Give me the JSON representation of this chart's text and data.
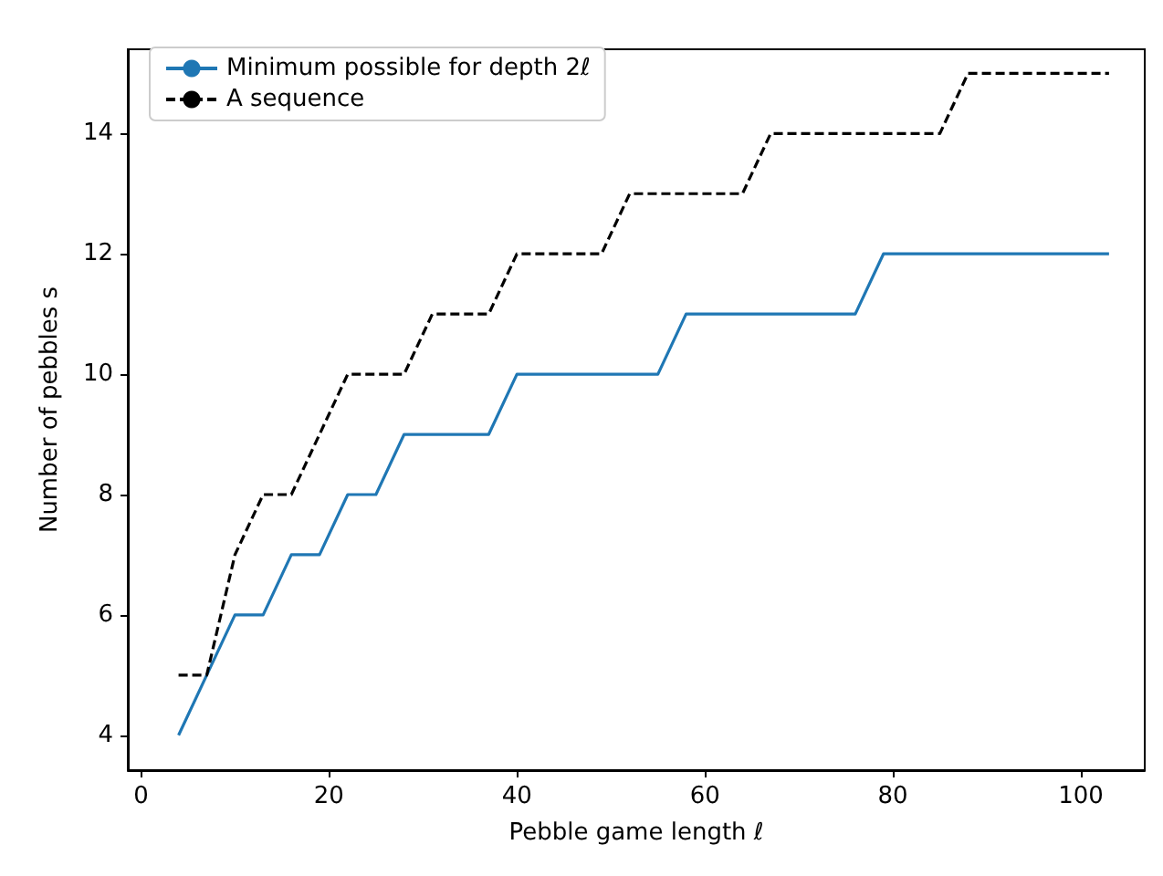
{
  "chart_data": {
    "type": "line",
    "xlabel": "Pebble game length ℓ",
    "ylabel": "Number of pebbles s",
    "xlim": [
      -1.4,
      106.8
    ],
    "ylim": [
      3.42,
      15.4
    ],
    "xticks": [
      0,
      20,
      40,
      60,
      80,
      100
    ],
    "yticks": [
      4,
      6,
      8,
      10,
      12,
      14
    ],
    "grid": false,
    "legend": "top left",
    "marker": "none",
    "series": [
      {
        "name": "Minimum possible for depth 2ℓ",
        "color": "#1f77b4",
        "line_style": "solid",
        "x": [
          4,
          10,
          13,
          16,
          19,
          22,
          25,
          28,
          37,
          40,
          55,
          58,
          76,
          79,
          103
        ],
        "values": [
          4,
          6,
          6,
          7,
          7,
          8,
          8,
          9,
          9,
          10,
          10,
          11,
          11,
          12,
          12
        ]
      },
      {
        "name": "A sequence",
        "color": "#000000",
        "line_style": "dashed",
        "x": [
          4,
          7,
          10,
          13,
          16,
          22,
          28,
          31,
          37,
          40,
          49,
          52,
          64,
          67,
          85,
          88,
          103
        ],
        "values": [
          5,
          5,
          7,
          8,
          8,
          10,
          10,
          11,
          11,
          12,
          12,
          13,
          13,
          14,
          14,
          15,
          15
        ]
      }
    ]
  }
}
